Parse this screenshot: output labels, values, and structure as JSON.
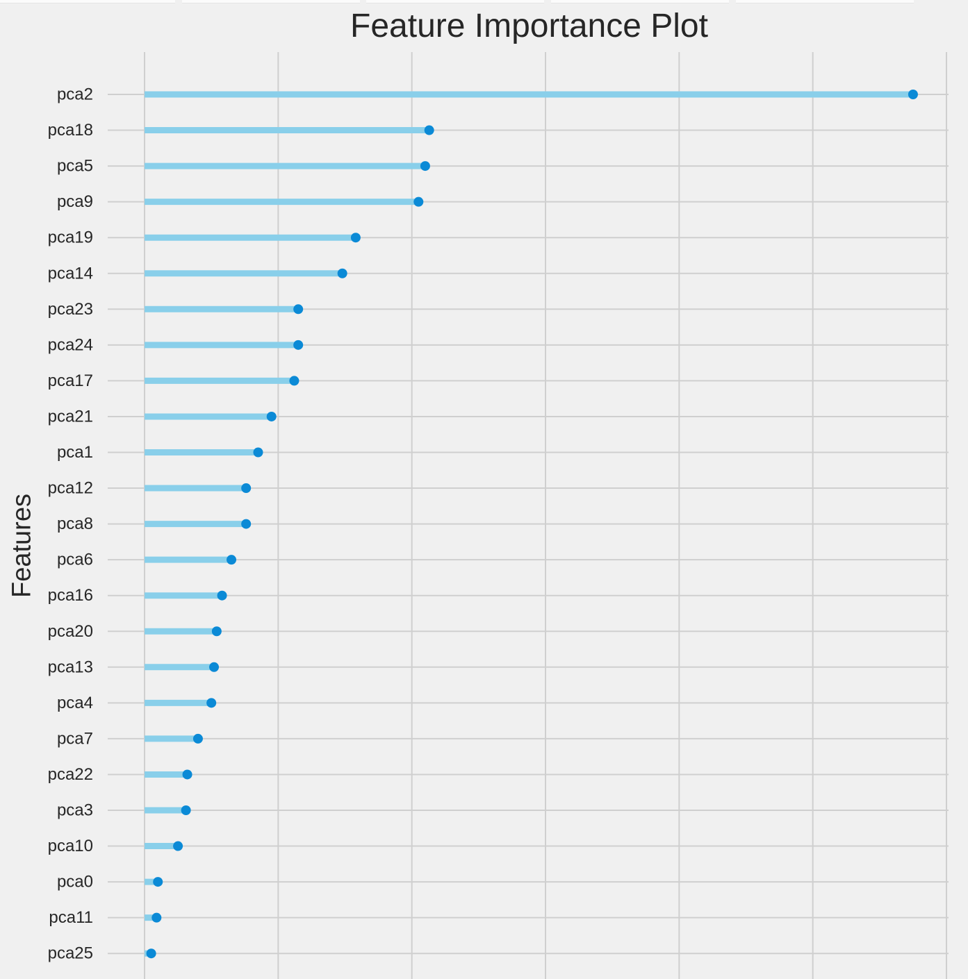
{
  "chart_data": {
    "type": "lollipop",
    "title": "Feature Importance Plot",
    "xlabel": "",
    "ylabel": "Features",
    "xlim": [
      0,
      6
    ],
    "x_ticks": [
      0,
      1,
      2,
      3,
      4,
      5,
      6
    ],
    "show_x_tick_labels": false,
    "grid": true,
    "categories": [
      "pca2",
      "pca18",
      "pca5",
      "pca9",
      "pca19",
      "pca14",
      "pca23",
      "pca24",
      "pca17",
      "pca21",
      "pca1",
      "pca12",
      "pca8",
      "pca6",
      "pca16",
      "pca20",
      "pca13",
      "pca4",
      "pca7",
      "pca22",
      "pca3",
      "pca10",
      "pca0",
      "pca11",
      "pca25"
    ],
    "values": [
      5.75,
      2.13,
      2.1,
      2.05,
      1.58,
      1.48,
      1.15,
      1.15,
      1.12,
      0.95,
      0.85,
      0.76,
      0.76,
      0.65,
      0.58,
      0.54,
      0.52,
      0.5,
      0.4,
      0.32,
      0.31,
      0.25,
      0.1,
      0.09,
      0.05
    ],
    "colors": {
      "stem": "#89cfea",
      "marker": "#0b8ad6",
      "grid": "#cfcfcf",
      "background": "#f0f0f0"
    }
  }
}
